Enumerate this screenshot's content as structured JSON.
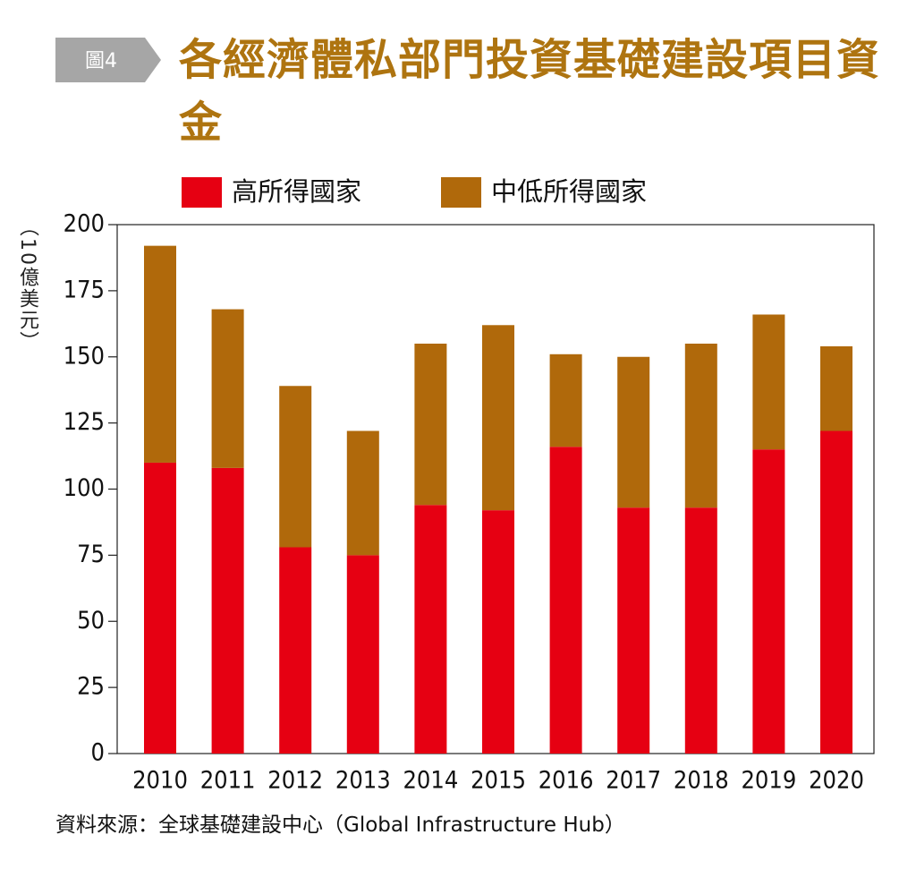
{
  "badge": "圖4",
  "chart_data": {
    "type": "stacked-bar",
    "title": "各經濟體私部門投資基礎建設項目資金",
    "y_label": "（10億美元）",
    "source": "資料來源：全球基礎建設中心（Global Infrastructure Hub）",
    "categories": [
      "2010",
      "2011",
      "2012",
      "2013",
      "2014",
      "2015",
      "2016",
      "2017",
      "2018",
      "2019",
      "2020"
    ],
    "series": [
      {
        "name": "高所得國家",
        "color": "#e60012",
        "values": [
          110,
          108,
          78,
          75,
          94,
          92,
          116,
          93,
          93,
          115,
          122
        ]
      },
      {
        "name": "中低所得國家",
        "color": "#b0690b",
        "values": [
          82,
          60,
          61,
          47,
          61,
          70,
          35,
          57,
          62,
          51,
          32
        ]
      }
    ],
    "ylim": [
      0,
      200
    ],
    "yticks": [
      0,
      25,
      50,
      75,
      100,
      125,
      150,
      175,
      200
    ]
  }
}
